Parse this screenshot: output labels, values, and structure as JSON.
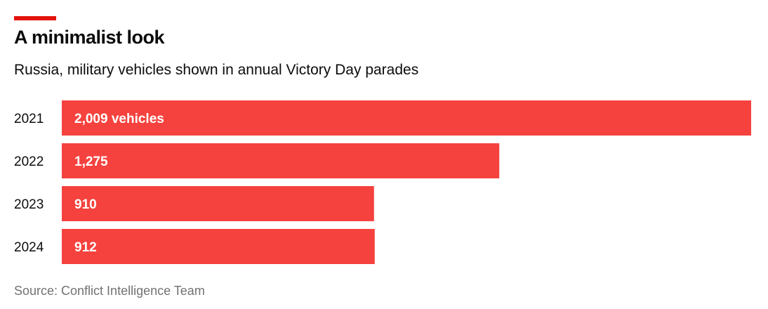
{
  "header": {
    "title": "A minimalist look",
    "subtitle": "Russia, military vehicles shown in annual Victory Day parades"
  },
  "footer": {
    "source": "Source: Conflict Intelligence Team"
  },
  "colors": {
    "accent": "#e3120b",
    "bar": "#f5423e",
    "bar_label": "#ffffff",
    "text": "#0c0c0c",
    "source_text": "#727272"
  },
  "chart_data": {
    "type": "bar",
    "orientation": "horizontal",
    "title": "A minimalist look",
    "subtitle": "Russia, military vehicles shown in annual Victory Day parades",
    "categories": [
      "2021",
      "2022",
      "2023",
      "2024"
    ],
    "values": [
      2009,
      1275,
      910,
      912
    ],
    "data_labels": [
      "2,009 vehicles",
      "1,275",
      "910",
      "912"
    ],
    "unit": "vehicles",
    "xlim": [
      0,
      2009
    ],
    "grid": false,
    "legend": "none"
  }
}
